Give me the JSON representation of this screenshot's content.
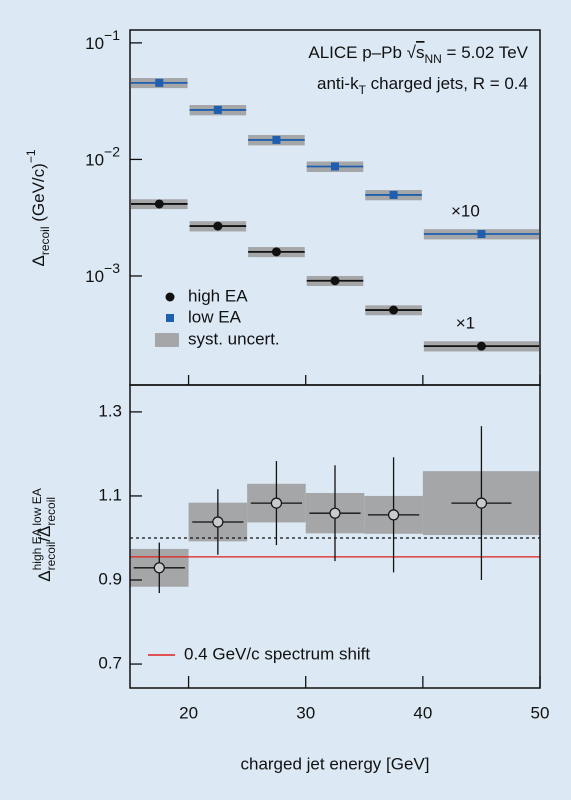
{
  "chart_data": [
    {
      "type": "scatter",
      "log_y": true,
      "annotation_lines": [
        [
          {
            "text": "ALICE p–Pb √"
          },
          {
            "text": "s",
            "style": "over"
          },
          {
            "text": "NN",
            "style": "sub"
          },
          {
            "text": " = 5.02 TeV"
          }
        ],
        [
          {
            "text": "anti-k"
          },
          {
            "text": "T",
            "style": "sub"
          },
          {
            "text": " charged jets, R = 0.4"
          }
        ]
      ],
      "ylabel": [
        {
          "text": "Δ"
        },
        {
          "text": "recoil",
          "style": "sub"
        },
        {
          "text": " (GeV/c)"
        },
        {
          "text": "−1",
          "style": "sup"
        }
      ],
      "xlim": [
        15,
        50
      ],
      "ylim": [
        0.000116,
        0.129
      ],
      "yticks": [
        {
          "value": 0.1,
          "label": "10",
          "exponent": "−1"
        },
        {
          "value": 0.01,
          "label": "10",
          "exponent": "−2"
        },
        {
          "value": 0.001,
          "label": "10",
          "exponent": "−3"
        }
      ],
      "bins": [
        15,
        20,
        25,
        30,
        35,
        40,
        50
      ],
      "x": [
        17.5,
        22.5,
        27.5,
        32.5,
        37.5,
        45
      ],
      "syst_label": "syst. uncert.",
      "syst_color": "#a4a6a8",
      "series": [
        {
          "name": "high EA",
          "color": "#111111",
          "marker": "circle",
          "scale_label": "×1",
          "values": [
            0.00415,
            0.00268,
            0.00161,
            0.00091,
            0.00051,
            0.00025
          ],
          "syst": [
            0.0004,
            0.00027,
            0.00016,
            9e-05,
            5e-05,
            2.5e-05
          ]
        },
        {
          "name": "low EA",
          "color": "#1f5fae",
          "marker": "square",
          "scale_label": "×10",
          "values": [
            0.0454,
            0.0266,
            0.0147,
            0.0087,
            0.00496,
            0.00229
          ],
          "syst": [
            0.0045,
            0.0027,
            0.0015,
            0.0009,
            0.0005,
            0.00023
          ]
        }
      ]
    },
    {
      "type": "ratio",
      "ylabel": [
        {
          "text": "Δ"
        },
        {
          "text": "high EA",
          "style": "sup"
        },
        {
          "text": "recoil",
          "style": "sub"
        },
        {
          "text": "/Δ"
        },
        {
          "text": "low EA",
          "style": "sup"
        },
        {
          "text": "recoil",
          "style": "sub"
        }
      ],
      "xlabel": "charged jet energy [GeV]",
      "xlim": [
        15,
        50
      ],
      "xticks": [
        20,
        30,
        40,
        50
      ],
      "ylim": [
        0.643,
        1.364
      ],
      "yticks": [
        0.7,
        0.9,
        1.1,
        1.3
      ],
      "bins": [
        15,
        20,
        25,
        30,
        35,
        40,
        50
      ],
      "x": [
        17.5,
        22.5,
        27.5,
        32.5,
        37.5,
        45
      ],
      "values": [
        0.929,
        1.038,
        1.083,
        1.059,
        1.055,
        1.083
      ],
      "errors": [
        0.06,
        0.078,
        0.1,
        0.114,
        0.137,
        0.183
      ],
      "syst": [
        0.045,
        0.046,
        0.046,
        0.048,
        0.045,
        0.076
      ],
      "color": "#c9cacb",
      "syst_color": "#a4a6a8",
      "hlines": [
        {
          "value": 1.0,
          "color": "#111111",
          "dashed": true
        },
        {
          "value": 0.955,
          "color": "#e0201b",
          "label": "0.4 GeV/c spectrum shift"
        }
      ]
    }
  ]
}
